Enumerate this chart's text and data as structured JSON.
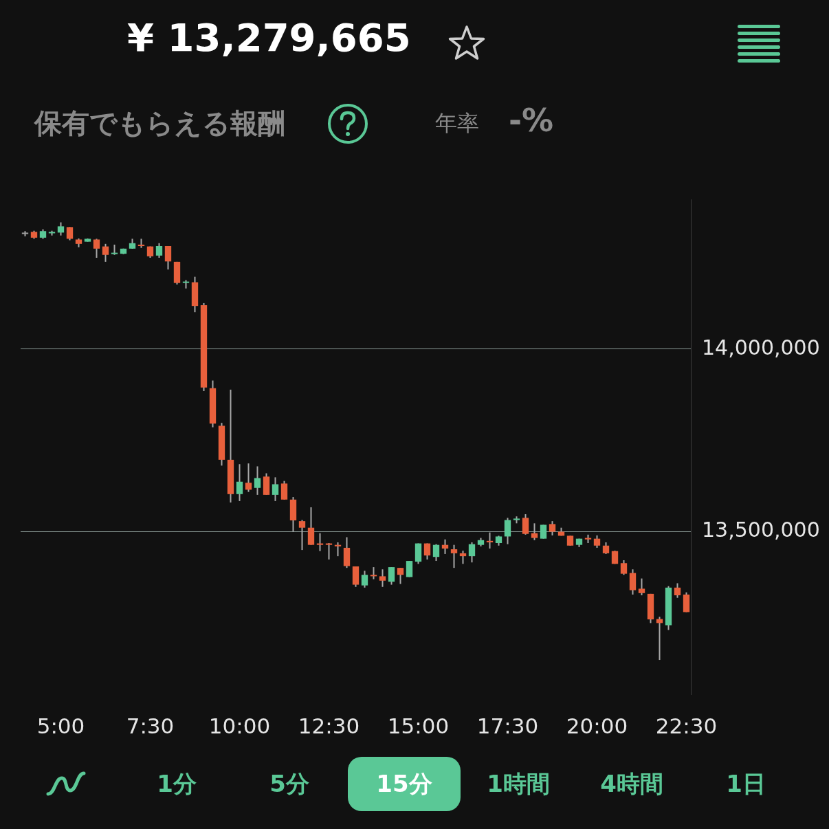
{
  "chart_data": {
    "type": "candlestick",
    "title": "¥ 13,279,665",
    "annotations": [
      "保有でもらえる報酬",
      "年率",
      "-%",
      "1分",
      "5分",
      "15分",
      "1時間",
      "4時間",
      "1日"
    ],
    "x": [
      4,
      4.25,
      4.5,
      4.75,
      5,
      5.25,
      5.5,
      5.75,
      6,
      6.25,
      6.5,
      6.75,
      7,
      7.25,
      7.5,
      7.75,
      8,
      8.25,
      8.5,
      8.75,
      9,
      9.25,
      9.5,
      9.75,
      10,
      10.25,
      10.5,
      10.75,
      11,
      11.25,
      11.5,
      11.75,
      12,
      12.25,
      12.5,
      12.75,
      13,
      13.25,
      13.5,
      13.75,
      14,
      14.25,
      14.5,
      14.75,
      15,
      15.25,
      15.5,
      15.75,
      16,
      16.25,
      16.5,
      16.75,
      17,
      17.25,
      17.5,
      17.75,
      18,
      18.25,
      18.5,
      18.75,
      19,
      19.25,
      19.5,
      19.75,
      20,
      20.25,
      20.5,
      20.75,
      21,
      21.25,
      21.5,
      21.75,
      22,
      22.25,
      22.5
    ],
    "ohlc": [
      [
        14317000,
        14323000,
        14309000,
        14317000
      ],
      [
        14321000,
        14324000,
        14302000,
        14305000
      ],
      [
        14305000,
        14328000,
        14302000,
        14323000
      ],
      [
        14317000,
        14324000,
        14311000,
        14321000
      ],
      [
        14319000,
        14347000,
        14311000,
        14336000
      ],
      [
        14334000,
        14334000,
        14298000,
        14302000
      ],
      [
        14300000,
        14303000,
        14279000,
        14288000
      ],
      [
        14294000,
        14303000,
        14294000,
        14302000
      ],
      [
        14300000,
        14302000,
        14250000,
        14275000
      ],
      [
        14281000,
        14288000,
        14239000,
        14258000
      ],
      [
        14260000,
        14286000,
        14258000,
        14262000
      ],
      [
        14261000,
        14275000,
        14260000,
        14275000
      ],
      [
        14275000,
        14302000,
        14275000,
        14290000
      ],
      [
        14286000,
        14302000,
        14277000,
        14282000
      ],
      [
        14281000,
        14281000,
        14250000,
        14254000
      ],
      [
        14256000,
        14290000,
        14250000,
        14282000
      ],
      [
        14282000,
        14282000,
        14218000,
        14240000
      ],
      [
        14239000,
        14239000,
        14177000,
        14181000
      ],
      [
        14181000,
        14189000,
        14166000,
        14183000
      ],
      [
        14183000,
        14198000,
        14101000,
        14118000
      ],
      [
        14120000,
        14126000,
        13885000,
        13895000
      ],
      [
        13893000,
        13914000,
        13786000,
        13796000
      ],
      [
        13790000,
        13798000,
        13681000,
        13697000
      ],
      [
        13697000,
        13889000,
        13580000,
        13603000
      ],
      [
        13603000,
        13685000,
        13584000,
        13637000
      ],
      [
        13634000,
        13687000,
        13609000,
        13615000
      ],
      [
        13620000,
        13679000,
        13601000,
        13647000
      ],
      [
        13651000,
        13660000,
        13601000,
        13601000
      ],
      [
        13601000,
        13649000,
        13584000,
        13630000
      ],
      [
        13632000,
        13639000,
        13588000,
        13588000
      ],
      [
        13588000,
        13595000,
        13500000,
        13531000
      ],
      [
        13529000,
        13532000,
        13450000,
        13511000
      ],
      [
        13511000,
        13567000,
        13464000,
        13464000
      ],
      [
        13468000,
        13496000,
        13447000,
        13464000
      ],
      [
        13468000,
        13469000,
        13424000,
        13464000
      ],
      [
        13464000,
        13471000,
        13433000,
        13460000
      ],
      [
        13456000,
        13485000,
        13401000,
        13406000
      ],
      [
        13405000,
        13405000,
        13349000,
        13355000
      ],
      [
        13353000,
        13393000,
        13347000,
        13382000
      ],
      [
        13382000,
        13403000,
        13370000,
        13378000
      ],
      [
        13378000,
        13397000,
        13349000,
        13366000
      ],
      [
        13363000,
        13403000,
        13355000,
        13403000
      ],
      [
        13401000,
        13401000,
        13357000,
        13382000
      ],
      [
        13376000,
        13420000,
        13376000,
        13420000
      ],
      [
        13418000,
        13468000,
        13412000,
        13468000
      ],
      [
        13468000,
        13468000,
        13424000,
        13435000
      ],
      [
        13431000,
        13466000,
        13420000,
        13464000
      ],
      [
        13464000,
        13479000,
        13439000,
        13454000
      ],
      [
        13452000,
        13464000,
        13401000,
        13441000
      ],
      [
        13441000,
        13448000,
        13412000,
        13433000
      ],
      [
        13433000,
        13471000,
        13416000,
        13466000
      ],
      [
        13464000,
        13483000,
        13460000,
        13477000
      ],
      [
        13475000,
        13498000,
        13454000,
        13471000
      ],
      [
        13469000,
        13489000,
        13462000,
        13487000
      ],
      [
        13487000,
        13538000,
        13466000,
        13532000
      ],
      [
        13532000,
        13542000,
        13523000,
        13536000
      ],
      [
        13538000,
        13548000,
        13492000,
        13494000
      ],
      [
        13496000,
        13523000,
        13477000,
        13483000
      ],
      [
        13481000,
        13519000,
        13481000,
        13519000
      ],
      [
        13521000,
        13529000,
        13490000,
        13500000
      ],
      [
        13500000,
        13511000,
        13489000,
        13489000
      ],
      [
        13489000,
        13489000,
        13462000,
        13462000
      ],
      [
        13464000,
        13481000,
        13458000,
        13481000
      ],
      [
        13483000,
        13492000,
        13469000,
        13479000
      ],
      [
        13481000,
        13490000,
        13456000,
        13462000
      ],
      [
        13462000,
        13471000,
        13439000,
        13441000
      ],
      [
        13447000,
        13448000,
        13412000,
        13412000
      ],
      [
        13414000,
        13422000,
        13382000,
        13385000
      ],
      [
        13387000,
        13397000,
        13328000,
        13340000
      ],
      [
        13344000,
        13372000,
        13326000,
        13332000
      ],
      [
        13330000,
        13330000,
        13250000,
        13260000
      ],
      [
        13261000,
        13267000,
        13149000,
        13250000
      ],
      [
        13244000,
        13351000,
        13231000,
        13347000
      ],
      [
        13347000,
        13359000,
        13319000,
        13326000
      ],
      [
        13328000,
        13334000,
        13280000,
        13280000
      ]
    ],
    "colors": [
      "#9e9e9e",
      "#e8603c",
      "#5ac896",
      "#5ac896",
      "#5ac896",
      "#e8603c",
      "#e8603c",
      "#5ac896",
      "#e8603c",
      "#e8603c",
      "#5ac896",
      "#5ac896",
      "#5ac896",
      "#e8603c",
      "#e8603c",
      "#5ac896",
      "#e8603c",
      "#e8603c",
      "#5ac896",
      "#e8603c",
      "#e8603c",
      "#e8603c",
      "#e8603c",
      "#e8603c",
      "#5ac896",
      "#e8603c",
      "#5ac896",
      "#e8603c",
      "#5ac896",
      "#e8603c",
      "#e8603c",
      "#e8603c",
      "#e8603c",
      "#e8603c",
      "#e8603c",
      "#e8603c",
      "#e8603c",
      "#e8603c",
      "#5ac896",
      "#e8603c",
      "#e8603c",
      "#5ac896",
      "#e8603c",
      "#5ac896",
      "#5ac896",
      "#e8603c",
      "#5ac896",
      "#e8603c",
      "#e8603c",
      "#e8603c",
      "#5ac896",
      "#5ac896",
      "#e8603c",
      "#5ac896",
      "#5ac896",
      "#5ac896",
      "#e8603c",
      "#e8603c",
      "#5ac896",
      "#e8603c",
      "#e8603c",
      "#e8603c",
      "#5ac896",
      "#e8603c",
      "#e8603c",
      "#e8603c",
      "#e8603c",
      "#e8603c",
      "#e8603c",
      "#e8603c",
      "#e8603c",
      "#e8603c",
      "#5ac896",
      "#e8603c",
      "#e8603c"
    ],
    "xlim": [
      3.875,
      22.625
    ],
    "xticks": [
      {
        "value": 5,
        "label": "5:00"
      },
      {
        "value": 7.5,
        "label": "7:30"
      },
      {
        "value": 10,
        "label": "10:00"
      },
      {
        "value": 12.5,
        "label": "12:30"
      },
      {
        "value": 15,
        "label": "15:00"
      },
      {
        "value": 17.5,
        "label": "17:30"
      },
      {
        "value": 20,
        "label": "20:00"
      },
      {
        "value": 22.5,
        "label": "22:30"
      }
    ],
    "yticks": [
      {
        "value": 13500000,
        "label": "13,500,000"
      },
      {
        "value": 14000000,
        "label": "14,000,000"
      }
    ],
    "ylim": [
      13055000,
      14410000
    ],
    "grid": "y"
  }
}
